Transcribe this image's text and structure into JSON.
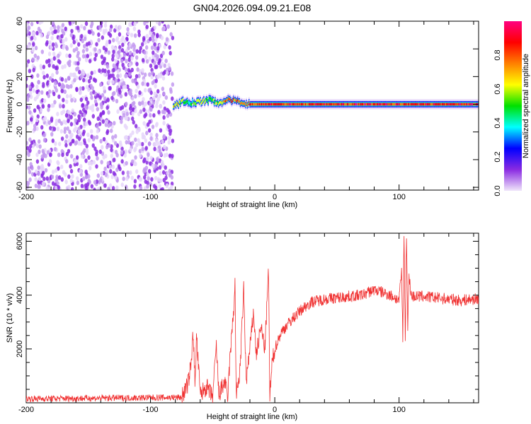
{
  "chart_data": [
    {
      "type": "heatmap",
      "title": "GN04.2026.094.09.21.E08",
      "xlabel": "Height of straight line (km)",
      "ylabel": "Frequency (Hz)",
      "xlim": [
        -200,
        164
      ],
      "ylim": [
        -62,
        60
      ],
      "xticks": [
        -200,
        -100,
        0,
        100
      ],
      "yticks": [
        -60,
        -40,
        -20,
        0,
        20,
        40,
        60
      ],
      "colorbar": {
        "label": "Normalized spectral amplitude",
        "range": [
          0,
          1
        ],
        "ticks": [
          "0.0",
          "0.2",
          "0.4",
          "0.6",
          "0.8"
        ],
        "colors": [
          "#f0e6fa",
          "#8a2be2",
          "#0000ff",
          "#00ffff",
          "#00e000",
          "#ffff00",
          "#ff8000",
          "#ff0000",
          "#ff0080"
        ]
      },
      "noise_region": {
        "x_range": [
          -200,
          -82
        ],
        "amplitude": 0.1
      },
      "carrier": {
        "frequency": 0,
        "x_range": [
          -82,
          164
        ],
        "points": [
          {
            "x": -82,
            "f": -2,
            "a": 0.8
          },
          {
            "x": -75,
            "f": 2,
            "a": 0.7
          },
          {
            "x": -68,
            "f": 1,
            "a": 0.6
          },
          {
            "x": -60,
            "f": 2,
            "a": 0.75
          },
          {
            "x": -52,
            "f": 3,
            "a": 0.6
          },
          {
            "x": -45,
            "f": 1,
            "a": 0.7
          },
          {
            "x": -38,
            "f": 3,
            "a": 0.9
          },
          {
            "x": -30,
            "f": 2,
            "a": 0.85
          },
          {
            "x": -20,
            "f": 0,
            "a": 0.9
          },
          {
            "x": -10,
            "f": 0,
            "a": 0.95
          },
          {
            "x": 0,
            "f": 0,
            "a": 0.95
          },
          {
            "x": 164,
            "f": 0,
            "a": 0.97
          }
        ]
      }
    },
    {
      "type": "line",
      "xlabel": "Height of straight line (km)",
      "ylabel": "SNR (10 * v/v)",
      "xlim": [
        -200,
        164
      ],
      "ylim": [
        0,
        6300
      ],
      "xticks": [
        -200,
        -100,
        0,
        100
      ],
      "yticks": [
        2000,
        4000,
        6000
      ],
      "series": [
        {
          "name": "SNR",
          "color": "#f03030",
          "x": [
            -200,
            -75,
            -70,
            -67,
            -66,
            -64,
            -63,
            -60,
            -55,
            -50,
            -47,
            -45,
            -40,
            -38,
            -36,
            -33,
            -32,
            -31,
            -28,
            -25,
            -23,
            -20,
            -17,
            -15,
            -11,
            -8,
            -5,
            -4,
            -2,
            0,
            5,
            10,
            15,
            20,
            25,
            30,
            40,
            50,
            60,
            70,
            75,
            80,
            90,
            95,
            100,
            102,
            103,
            104,
            105,
            106,
            107,
            108,
            110,
            120,
            130,
            140,
            150,
            160,
            164
          ],
          "y": [
            150,
            200,
            700,
            1500,
            2900,
            600,
            2500,
            300,
            600,
            200,
            2100,
            300,
            800,
            100,
            1700,
            3500,
            4400,
            200,
            1200,
            4200,
            800,
            2000,
            3400,
            1800,
            2800,
            2000,
            4900,
            200,
            1500,
            2000,
            2600,
            2900,
            3150,
            3400,
            3600,
            3750,
            3850,
            3900,
            3950,
            4000,
            4100,
            4200,
            4050,
            3950,
            3800,
            4900,
            2400,
            6300,
            2300,
            6300,
            2800,
            4700,
            3950,
            3950,
            3900,
            3850,
            3800,
            3850,
            3850
          ]
        }
      ]
    }
  ]
}
